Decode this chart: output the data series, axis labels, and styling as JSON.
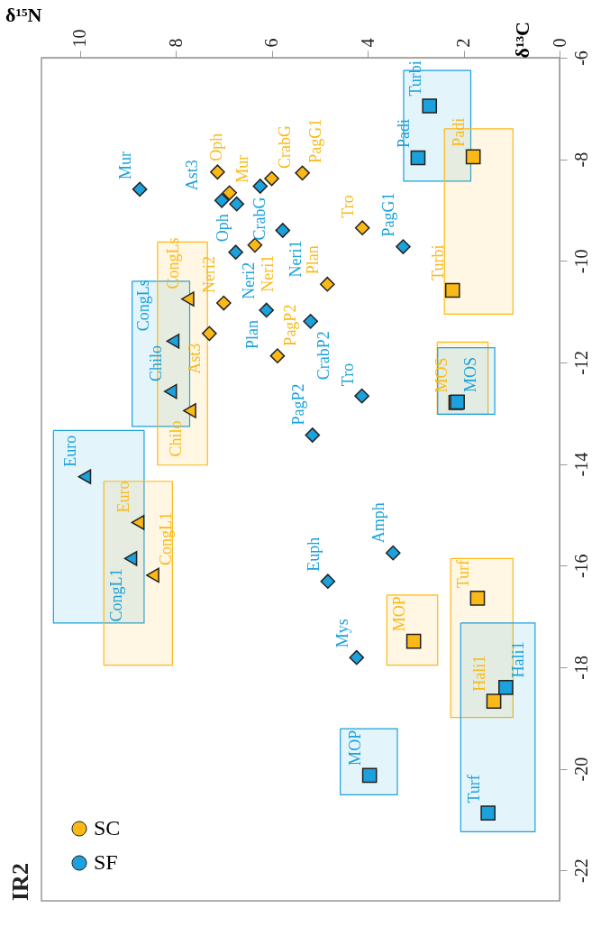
{
  "chart_data": {
    "type": "scatter",
    "title": "IR2",
    "xlabel": "δ¹⁵N",
    "ylabel": "δ¹³C",
    "xlim": [
      10.8,
      0
    ],
    "ylim": [
      -22.6,
      -6
    ],
    "xticks": [
      10,
      8,
      6,
      4,
      2,
      0
    ],
    "yticks": [
      -22,
      -20,
      -18,
      -16,
      -14,
      -12,
      -10,
      -8,
      -6
    ],
    "grid": false,
    "legend": "bottom left",
    "series": [
      {
        "type": "area",
        "color": "#1ba1db",
        "x": [
          3.25,
          1.85,
          1.85,
          3.25,
          3.25
        ],
        "values": [
          -6.25,
          -6.25,
          -8.43,
          -8.43,
          -6.25
        ]
      },
      {
        "type": "area",
        "color": "#fbb917",
        "x": [
          2.4,
          0.97,
          0.97,
          2.4,
          2.4
        ],
        "values": [
          -7.4,
          -7.4,
          -11.05,
          -11.05,
          -7.4
        ]
      },
      {
        "type": "area",
        "color": "#1ba1db",
        "x": [
          8.91,
          7.71,
          7.71,
          8.91,
          8.91
        ],
        "values": [
          -10.4,
          -10.4,
          -13.26,
          -13.26,
          -10.4
        ]
      },
      {
        "type": "area",
        "color": "#fbb917",
        "x": [
          8.38,
          7.34,
          7.34,
          8.38,
          8.38
        ],
        "values": [
          -9.63,
          -9.63,
          -14.02,
          -14.02,
          -9.63
        ]
      },
      {
        "type": "area",
        "color": "#1ba1db",
        "x": [
          10.55,
          8.66,
          8.66,
          10.55,
          10.55
        ],
        "values": [
          -13.34,
          -13.34,
          -17.13,
          -17.13,
          -13.34
        ]
      },
      {
        "type": "area",
        "color": "#fbb917",
        "x": [
          9.5,
          8.07,
          8.07,
          9.5,
          9.5
        ],
        "values": [
          -14.34,
          -14.34,
          -17.96,
          -17.96,
          -14.34
        ]
      },
      {
        "type": "area",
        "color": "#fbb917",
        "x": [
          2.55,
          1.49,
          1.49,
          2.55,
          2.55
        ],
        "values": [
          -11.6,
          -11.6,
          -13.02,
          -13.02,
          -11.6
        ]
      },
      {
        "type": "area",
        "color": "#1ba1db",
        "x": [
          2.54,
          1.35,
          1.35,
          2.54,
          2.54
        ],
        "values": [
          -11.71,
          -11.71,
          -13.02,
          -13.02,
          -11.71
        ]
      },
      {
        "type": "area",
        "color": "#fbb917",
        "x": [
          2.27,
          0.97,
          0.97,
          2.27,
          2.27
        ],
        "values": [
          -15.86,
          -15.86,
          -18.99,
          -18.99,
          -15.86
        ]
      },
      {
        "type": "area",
        "color": "#fbb917",
        "x": [
          3.6,
          2.54,
          2.54,
          3.6,
          3.6
        ],
        "values": [
          -16.58,
          -16.58,
          -17.96,
          -17.96,
          -16.58
        ]
      },
      {
        "type": "area",
        "color": "#1ba1db",
        "x": [
          4.57,
          3.38,
          3.38,
          4.57,
          4.57
        ],
        "values": [
          -19.21,
          -19.21,
          -20.51,
          -20.51,
          -19.21
        ]
      },
      {
        "type": "area",
        "color": "#1ba1db",
        "x": [
          2.06,
          0.51,
          0.51,
          2.06,
          2.06
        ],
        "values": [
          -17.13,
          -17.13,
          -21.24,
          -21.24,
          -17.13
        ]
      },
      {
        "name": "SC",
        "color": "#fbb917",
        "marker": "diamond",
        "x": [
          7.13,
          6.88,
          6.0,
          5.36,
          6.35,
          4.11,
          4.84,
          7.0,
          7.3,
          5.88
        ],
        "values": [
          -8.25,
          -8.66,
          -8.38,
          -8.27,
          -9.69,
          -9.35,
          -10.46,
          -10.83,
          -11.43,
          -11.87
        ],
        "value_labels": [
          "Oph",
          "Mur",
          "CrabG",
          "PagG1",
          "Neri1",
          "Tro",
          "Plan",
          "Neri2",
          "Ast3",
          "PagP2"
        ]
      },
      {
        "color": "#fbb917",
        "marker": "triangle",
        "x": [
          7.75,
          7.71,
          8.79,
          8.48
        ],
        "values": [
          -10.75,
          -12.95,
          -15.15,
          -16.19
        ],
        "value_labels": [
          "CongLs",
          "Chilo",
          "Euro",
          "CongL1"
        ]
      },
      {
        "color": "#fbb917",
        "marker": "square",
        "x": [
          1.8,
          2.23,
          2.16,
          1.71,
          3.04,
          1.37
        ],
        "values": [
          -7.95,
          -10.58,
          -12.79,
          -16.64,
          -17.49,
          -18.67
        ],
        "value_labels": [
          "Padi",
          "Turbi",
          "MOS",
          "Turf",
          "MOP",
          "Hali1"
        ]
      },
      {
        "name": "SF",
        "color": "#1ba1db",
        "marker": "diamond",
        "x": [
          8.75,
          7.04,
          6.73,
          6.24,
          5.77,
          6.75,
          3.26,
          6.11,
          5.19,
          4.12,
          5.15,
          3.47,
          4.83,
          4.23
        ],
        "values": [
          -8.59,
          -8.81,
          -8.88,
          -8.53,
          -9.4,
          -9.83,
          -9.72,
          -10.97,
          -11.19,
          -12.66,
          -13.43,
          -15.75,
          -16.31,
          -17.81
        ],
        "value_labels": [
          "Mur",
          "Ast3",
          "Oph",
          "CrabG",
          "Neri1",
          "Neri2",
          "PagG1",
          "Plan",
          "CrabP2",
          "Tro",
          "PagP2",
          "Amph",
          "Euph",
          "Mys"
        ]
      },
      {
        "color": "#1ba1db",
        "marker": "triangle",
        "x": [
          8.06,
          8.11,
          9.9,
          8.94
        ],
        "values": [
          -11.58,
          -12.57,
          -14.25,
          -15.86
        ],
        "value_labels": [
          "CongLs",
          "Chilo",
          "Euro",
          "CongL1"
        ]
      },
      {
        "color": "#1ba1db",
        "marker": "square",
        "x": [
          2.71,
          2.95,
          2.13,
          1.12,
          3.96,
          1.49
        ],
        "values": [
          -6.95,
          -7.97,
          -12.78,
          -18.4,
          -20.13,
          -20.87
        ],
        "value_labels": [
          "Turbi",
          "Padi",
          "MOS",
          "Hali1",
          "MOP",
          "Turf"
        ]
      }
    ]
  }
}
